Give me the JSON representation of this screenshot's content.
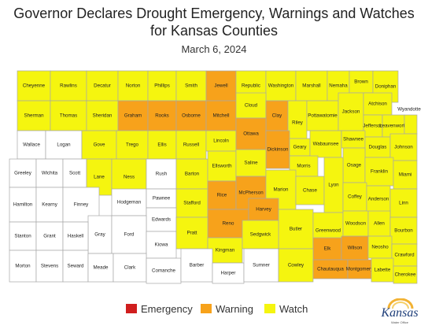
{
  "title_line1": "Governor Declares Drought Emergency, Warnings and Watches",
  "title_line2": "for Kansas Counties",
  "subtitle": "March 6, 2024",
  "colors": {
    "watch": "#f5f50f",
    "warning": "#f7a21b",
    "emergency": "#d01e1e",
    "none": "#ffffff",
    "border": "#a8a8a8"
  },
  "legend": [
    {
      "status": "emergency",
      "label": "Emergency"
    },
    {
      "status": "warning",
      "label": "Warning"
    },
    {
      "status": "watch",
      "label": "Watch"
    }
  ],
  "logo": {
    "text": "Kansas",
    "sub": "Water Office"
  },
  "counties": [
    {
      "name": "Cheyenne",
      "status": "watch"
    },
    {
      "name": "Rawlins",
      "status": "watch"
    },
    {
      "name": "Decatur",
      "status": "watch"
    },
    {
      "name": "Norton",
      "status": "watch"
    },
    {
      "name": "Phillips",
      "status": "watch"
    },
    {
      "name": "Smith",
      "status": "watch"
    },
    {
      "name": "Jewell",
      "status": "warning"
    },
    {
      "name": "Republic",
      "status": "watch"
    },
    {
      "name": "Washington",
      "status": "watch"
    },
    {
      "name": "Marshall",
      "status": "watch"
    },
    {
      "name": "Nemaha",
      "status": "watch"
    },
    {
      "name": "Brown",
      "status": "watch"
    },
    {
      "name": "Doniphan",
      "status": "watch"
    },
    {
      "name": "Sherman",
      "status": "watch"
    },
    {
      "name": "Thomas",
      "status": "watch"
    },
    {
      "name": "Sheridan",
      "status": "watch"
    },
    {
      "name": "Graham",
      "status": "warning"
    },
    {
      "name": "Rooks",
      "status": "warning"
    },
    {
      "name": "Osborne",
      "status": "warning"
    },
    {
      "name": "Mitchell",
      "status": "warning"
    },
    {
      "name": "Cloud",
      "status": "watch"
    },
    {
      "name": "Clay",
      "status": "warning"
    },
    {
      "name": "Riley",
      "status": "watch"
    },
    {
      "name": "Pottawatomie",
      "status": "watch"
    },
    {
      "name": "Jackson",
      "status": "watch"
    },
    {
      "name": "Atchison",
      "status": "watch"
    },
    {
      "name": "Jefferson",
      "status": "watch"
    },
    {
      "name": "Leavenworth",
      "status": "watch"
    },
    {
      "name": "Wyandotte",
      "status": "watch"
    },
    {
      "name": "Wallace",
      "status": "none"
    },
    {
      "name": "Logan",
      "status": "none"
    },
    {
      "name": "Gove",
      "status": "watch"
    },
    {
      "name": "Trego",
      "status": "watch"
    },
    {
      "name": "Ellis",
      "status": "watch"
    },
    {
      "name": "Russell",
      "status": "watch"
    },
    {
      "name": "Lincoln",
      "status": "watch"
    },
    {
      "name": "Ottawa",
      "status": "warning"
    },
    {
      "name": "Dickinson",
      "status": "warning"
    },
    {
      "name": "Geary",
      "status": "watch"
    },
    {
      "name": "Wabaunsee",
      "status": "watch"
    },
    {
      "name": "Shawnee",
      "status": "watch"
    },
    {
      "name": "Douglas",
      "status": "watch"
    },
    {
      "name": "Johnson",
      "status": "watch"
    },
    {
      "name": "Greeley",
      "status": "none"
    },
    {
      "name": "Wichita",
      "status": "none"
    },
    {
      "name": "Scott",
      "status": "none"
    },
    {
      "name": "Lane",
      "status": "watch"
    },
    {
      "name": "Ness",
      "status": "watch"
    },
    {
      "name": "Rush",
      "status": "none"
    },
    {
      "name": "Barton",
      "status": "watch"
    },
    {
      "name": "Ellsworth",
      "status": "watch"
    },
    {
      "name": "Saline",
      "status": "watch"
    },
    {
      "name": "Morris",
      "status": "watch"
    },
    {
      "name": "Osage",
      "status": "watch"
    },
    {
      "name": "Franklin",
      "status": "watch"
    },
    {
      "name": "Miami",
      "status": "watch"
    },
    {
      "name": "Hamilton",
      "status": "none"
    },
    {
      "name": "Kearny",
      "status": "none"
    },
    {
      "name": "Finney",
      "status": "none"
    },
    {
      "name": "Hodgeman",
      "status": "none"
    },
    {
      "name": "Pawnee",
      "status": "none"
    },
    {
      "name": "Stafford",
      "status": "watch"
    },
    {
      "name": "Rice",
      "status": "warning"
    },
    {
      "name": "McPherson",
      "status": "warning"
    },
    {
      "name": "Marion",
      "status": "watch"
    },
    {
      "name": "Chase",
      "status": "watch"
    },
    {
      "name": "Lyon",
      "status": "watch"
    },
    {
      "name": "Coffey",
      "status": "watch"
    },
    {
      "name": "Anderson",
      "status": "watch"
    },
    {
      "name": "Linn",
      "status": "watch"
    },
    {
      "name": "Gray",
      "status": "none"
    },
    {
      "name": "Edwards",
      "status": "none"
    },
    {
      "name": "Reno",
      "status": "warning"
    },
    {
      "name": "Harvey",
      "status": "warning"
    },
    {
      "name": "Butler",
      "status": "watch"
    },
    {
      "name": "Greenwood",
      "status": "watch"
    },
    {
      "name": "Woodson",
      "status": "watch"
    },
    {
      "name": "Allen",
      "status": "watch"
    },
    {
      "name": "Bourbon",
      "status": "watch"
    },
    {
      "name": "Stanton",
      "status": "none"
    },
    {
      "name": "Grant",
      "status": "none"
    },
    {
      "name": "Haskell",
      "status": "none"
    },
    {
      "name": "Ford",
      "status": "none"
    },
    {
      "name": "Kiowa",
      "status": "none"
    },
    {
      "name": "Pratt",
      "status": "watch"
    },
    {
      "name": "Kingman",
      "status": "watch"
    },
    {
      "name": "Sedgwick",
      "status": "watch"
    },
    {
      "name": "Elk",
      "status": "warning"
    },
    {
      "name": "Wilson",
      "status": "warning"
    },
    {
      "name": "Neosho",
      "status": "watch"
    },
    {
      "name": "Crawford",
      "status": "watch"
    },
    {
      "name": "Morton",
      "status": "none"
    },
    {
      "name": "Stevens",
      "status": "none"
    },
    {
      "name": "Seward",
      "status": "none"
    },
    {
      "name": "Meade",
      "status": "none"
    },
    {
      "name": "Clark",
      "status": "none"
    },
    {
      "name": "Comanche",
      "status": "none"
    },
    {
      "name": "Barber",
      "status": "none"
    },
    {
      "name": "Harper",
      "status": "none"
    },
    {
      "name": "Sumner",
      "status": "none"
    },
    {
      "name": "Cowley",
      "status": "watch"
    },
    {
      "name": "Chautauqua",
      "status": "warning"
    },
    {
      "name": "Montgomery",
      "status": "warning"
    },
    {
      "name": "Labette",
      "status": "watch"
    },
    {
      "name": "Cherokee",
      "status": "watch"
    }
  ]
}
